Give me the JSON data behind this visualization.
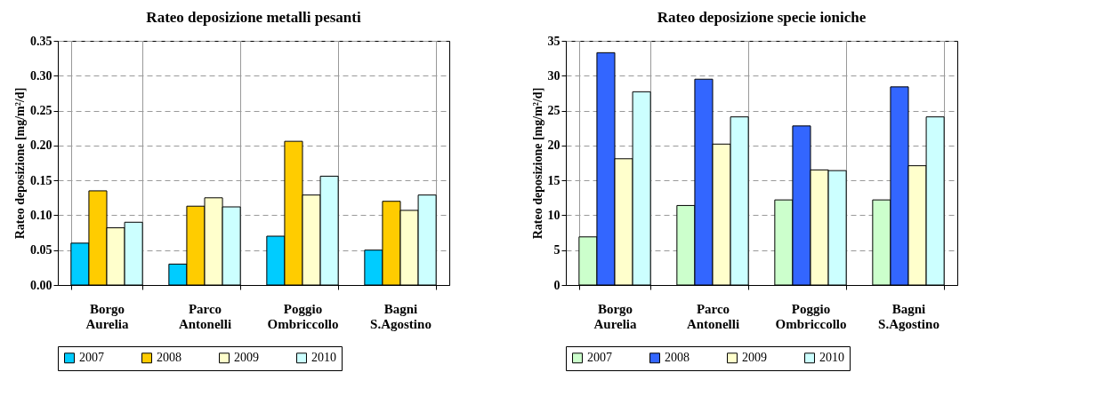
{
  "chart_data": [
    {
      "type": "bar",
      "title": "Rateo deposizione metalli pesanti",
      "ylabel": "Rateo deposizione [mg/m²/d]",
      "categories": [
        "Borgo Aurelia",
        "Parco Antonelli",
        "Poggio Ombriccollo",
        "Bagni S.Agostino"
      ],
      "series": [
        {
          "name": "2007",
          "color": "#00ccff",
          "values": [
            0.06,
            0.03,
            0.07,
            0.05
          ]
        },
        {
          "name": "2008",
          "color": "#ffcc00",
          "values": [
            0.135,
            0.113,
            0.206,
            0.12
          ]
        },
        {
          "name": "2009",
          "color": "#ffffcc",
          "values": [
            0.082,
            0.125,
            0.129,
            0.107
          ]
        },
        {
          "name": "2010",
          "color": "#ccffff",
          "values": [
            0.09,
            0.112,
            0.156,
            0.129
          ]
        }
      ],
      "ylim": [
        0,
        0.35
      ],
      "yticks": [
        {
          "value": 0,
          "label": "0.00"
        },
        {
          "value": 0.05,
          "label": "0.05"
        },
        {
          "value": 0.1,
          "label": "0.10"
        },
        {
          "value": 0.15,
          "label": "0.15"
        },
        {
          "value": 0.2,
          "label": "0.20"
        },
        {
          "value": 0.25,
          "label": "0.25"
        },
        {
          "value": 0.3,
          "label": "0.30"
        },
        {
          "value": 0.35,
          "label": "0.35"
        }
      ],
      "grid": true,
      "legend": "bottom"
    },
    {
      "type": "bar",
      "title": "Rateo deposizione specie ioniche",
      "ylabel": "Rateo deposizione [mg/m²/d]",
      "categories": [
        "Borgo Aurelia",
        "Parco Antonelli",
        "Poggio Ombriccollo",
        "Bagni S.Agostino"
      ],
      "series": [
        {
          "name": "2007",
          "color": "#ccffcc",
          "values": [
            6.9,
            11.4,
            12.2,
            12.2
          ]
        },
        {
          "name": "2008",
          "color": "#3366ff",
          "values": [
            33.3,
            29.5,
            22.8,
            28.4
          ]
        },
        {
          "name": "2009",
          "color": "#ffffcc",
          "values": [
            18.1,
            20.2,
            16.5,
            17.1
          ]
        },
        {
          "name": "2010",
          "color": "#ccffff",
          "values": [
            27.7,
            24.1,
            16.4,
            24.1
          ]
        }
      ],
      "ylim": [
        0,
        35
      ],
      "yticks": [
        0,
        5,
        10,
        15,
        20,
        25,
        30,
        35
      ],
      "grid": true,
      "legend": "bottom"
    }
  ]
}
